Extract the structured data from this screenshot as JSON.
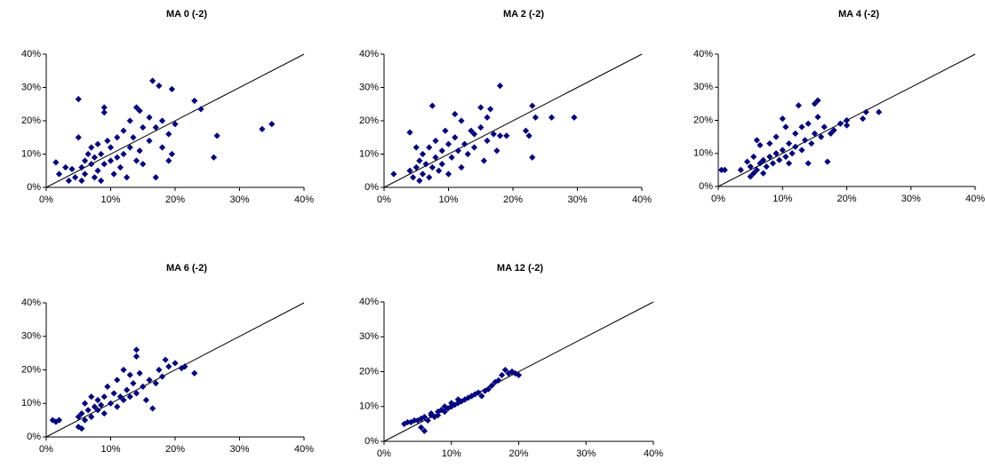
{
  "chart_data": [
    {
      "type": "scatter",
      "title": "MA 0 (-2)",
      "color": "#000080",
      "diagonal": true,
      "xlim": [
        0,
        40
      ],
      "ylim": [
        0,
        40
      ],
      "xticks": [
        {
          "value": 0,
          "label": "0%"
        },
        {
          "value": 10,
          "label": "10%"
        },
        {
          "value": 20,
          "label": "20%"
        },
        {
          "value": 30,
          "label": "30%"
        },
        {
          "value": 40,
          "label": "40%"
        }
      ],
      "yticks": [
        {
          "value": 0,
          "label": "0%"
        },
        {
          "value": 10,
          "label": "10%"
        },
        {
          "value": 20,
          "label": "20%"
        },
        {
          "value": 30,
          "label": "30%"
        },
        {
          "value": 40,
          "label": "40%"
        }
      ],
      "x": [
        1.5,
        2,
        3,
        3.5,
        4,
        4.5,
        5,
        5,
        5.5,
        5.5,
        6,
        6,
        6.5,
        7,
        7,
        7.5,
        7.5,
        8,
        8,
        8.5,
        8.5,
        9,
        9,
        9,
        9.5,
        10,
        10,
        10.5,
        11,
        11,
        11.5,
        12,
        12,
        12.5,
        13,
        13,
        13.5,
        14,
        14,
        14.5,
        14.5,
        15,
        15,
        16,
        16,
        16.5,
        17,
        17,
        17.5,
        18,
        18,
        19,
        19,
        19.5,
        19.5,
        20,
        23,
        24,
        26,
        26.5,
        33.5,
        35
      ],
      "y": [
        7.5,
        4,
        6,
        2,
        5.5,
        3,
        26.5,
        15,
        2,
        6,
        8,
        4,
        10,
        7,
        12,
        3,
        9,
        5,
        13,
        2,
        10,
        22.5,
        24,
        7,
        14,
        8,
        12,
        4,
        9,
        15,
        6,
        10,
        17,
        3,
        12,
        20,
        15,
        24,
        8,
        23,
        11,
        18,
        7,
        14,
        21,
        32,
        3,
        18,
        30.5,
        12,
        20,
        8,
        16,
        29.5,
        10,
        19,
        26,
        23.5,
        9,
        15.5,
        17.5,
        19
      ]
    },
    {
      "type": "scatter",
      "title": "MA 2 (-2)",
      "color": "#000080",
      "diagonal": true,
      "xlim": [
        0,
        40
      ],
      "ylim": [
        0,
        40
      ],
      "xticks": [
        {
          "value": 0,
          "label": "0%"
        },
        {
          "value": 10,
          "label": "10%"
        },
        {
          "value": 20,
          "label": "20%"
        },
        {
          "value": 30,
          "label": "30%"
        },
        {
          "value": 40,
          "label": "40%"
        }
      ],
      "yticks": [
        {
          "value": 0,
          "label": "0%"
        },
        {
          "value": 10,
          "label": "10%"
        },
        {
          "value": 20,
          "label": "20%"
        },
        {
          "value": 30,
          "label": "30%"
        },
        {
          "value": 40,
          "label": "40%"
        }
      ],
      "x": [
        1.5,
        4,
        4,
        4.5,
        5,
        5,
        5.5,
        5.5,
        6,
        6,
        6.5,
        7,
        7,
        7.5,
        7.5,
        8,
        8,
        8.5,
        9,
        9,
        9.5,
        10,
        10,
        10.5,
        11,
        11,
        11.5,
        12,
        12,
        12.5,
        13,
        13.5,
        14,
        14,
        15,
        15,
        15.5,
        16,
        16,
        16.5,
        17,
        17.5,
        18,
        18,
        19,
        22,
        22.5,
        23,
        23,
        23.5,
        26,
        29.5
      ],
      "y": [
        4,
        16.5,
        5,
        3,
        6,
        12,
        2,
        8,
        4,
        10,
        7,
        3,
        12,
        24.5,
        6,
        9,
        14,
        5,
        11,
        7,
        17,
        13,
        4,
        9,
        22,
        15,
        11,
        6,
        20,
        13,
        10,
        17,
        12,
        16,
        24,
        18,
        8,
        21,
        14,
        23.5,
        16,
        11,
        30.5,
        15.5,
        15.5,
        17,
        15.5,
        9,
        24.5,
        21,
        21,
        21
      ]
    },
    {
      "type": "scatter",
      "title": "MA 4 (-2)",
      "color": "#000080",
      "diagonal": true,
      "xlim": [
        0,
        40
      ],
      "ylim": [
        0,
        40
      ],
      "xticks": [
        {
          "value": 0,
          "label": "0%"
        },
        {
          "value": 10,
          "label": "10%"
        },
        {
          "value": 20,
          "label": "20%"
        },
        {
          "value": 30,
          "label": "30%"
        },
        {
          "value": 40,
          "label": "40%"
        }
      ],
      "yticks": [
        {
          "value": 0,
          "label": "0%"
        },
        {
          "value": 10,
          "label": "10%"
        },
        {
          "value": 20,
          "label": "20%"
        },
        {
          "value": 30,
          "label": "30%"
        },
        {
          "value": 40,
          "label": "40%"
        }
      ],
      "x": [
        0.5,
        1,
        3.5,
        4.5,
        5,
        5,
        5.5,
        5.5,
        6,
        6,
        6.5,
        6.5,
        7,
        7,
        7.5,
        8,
        8,
        8.5,
        9,
        9,
        9.5,
        10,
        10,
        10.5,
        10.5,
        11,
        11,
        11.5,
        12,
        12,
        12.5,
        13,
        13,
        13.5,
        14,
        14,
        14.5,
        15,
        15,
        15.5,
        15.5,
        16,
        16.5,
        17,
        17.5,
        18,
        19,
        20,
        20,
        22.5,
        23,
        25
      ],
      "y": [
        5,
        5,
        5,
        7.5,
        3,
        6,
        4,
        9,
        5,
        14,
        7,
        12.5,
        4,
        8,
        6,
        9,
        13,
        7,
        10,
        15,
        8,
        11,
        20.5,
        9,
        18,
        7,
        13,
        10,
        12,
        16,
        24.5,
        11,
        18,
        14,
        7,
        19,
        13,
        16,
        25,
        26,
        21,
        15,
        18,
        7.5,
        16,
        17,
        19,
        18.5,
        20,
        20.5,
        22.5,
        22.5
      ]
    },
    {
      "type": "scatter",
      "title": "MA 6 (-2)",
      "color": "#000080",
      "diagonal": true,
      "xlim": [
        0,
        40
      ],
      "ylim": [
        0,
        40
      ],
      "xticks": [
        {
          "value": 0,
          "label": "0%"
        },
        {
          "value": 10,
          "label": "10%"
        },
        {
          "value": 20,
          "label": "20%"
        },
        {
          "value": 30,
          "label": "30%"
        },
        {
          "value": 40,
          "label": "40%"
        }
      ],
      "yticks": [
        {
          "value": 0,
          "label": "0%"
        },
        {
          "value": 10,
          "label": "10%"
        },
        {
          "value": 20,
          "label": "20%"
        },
        {
          "value": 30,
          "label": "30%"
        },
        {
          "value": 40,
          "label": "40%"
        }
      ],
      "x": [
        1,
        1.5,
        2,
        5,
        5,
        5.5,
        5.5,
        6,
        6,
        6.5,
        7,
        7,
        7.5,
        8,
        8,
        8.5,
        9,
        9,
        9.5,
        10,
        10.5,
        11,
        11,
        11.5,
        12,
        12,
        12.5,
        13,
        13,
        13.5,
        14,
        14,
        14,
        14.5,
        15,
        15.5,
        16,
        16.5,
        17,
        17.5,
        18,
        18.5,
        19,
        20,
        21,
        21.5,
        23
      ],
      "y": [
        5,
        4.5,
        5,
        3,
        6,
        2.5,
        7,
        5,
        10,
        8,
        6,
        12,
        9,
        8,
        11,
        9.5,
        7,
        12,
        15,
        10,
        13,
        9,
        17,
        12,
        11,
        20,
        14,
        12,
        18.5,
        16,
        26,
        24,
        13,
        19,
        15,
        11,
        17,
        8.5,
        16,
        20,
        18,
        23,
        21,
        22,
        20.5,
        21,
        19
      ]
    },
    {
      "type": "scatter",
      "title": "MA 12 (-2)",
      "color": "#000080",
      "diagonal": true,
      "xlim": [
        0,
        40
      ],
      "ylim": [
        0,
        40
      ],
      "xticks": [
        {
          "value": 0,
          "label": "0%"
        },
        {
          "value": 10,
          "label": "10%"
        },
        {
          "value": 20,
          "label": "20%"
        },
        {
          "value": 30,
          "label": "30%"
        },
        {
          "value": 40,
          "label": "40%"
        }
      ],
      "yticks": [
        {
          "value": 0,
          "label": "0%"
        },
        {
          "value": 10,
          "label": "10%"
        },
        {
          "value": 20,
          "label": "20%"
        },
        {
          "value": 30,
          "label": "30%"
        },
        {
          "value": 40,
          "label": "40%"
        }
      ],
      "x": [
        3,
        3.5,
        4,
        4.5,
        5,
        5.5,
        5.5,
        6,
        6,
        6.5,
        7,
        7,
        7.5,
        8,
        8,
        8.5,
        9,
        9,
        9.5,
        10,
        10,
        10.5,
        11,
        11,
        11.5,
        12,
        12.5,
        13,
        13.5,
        14,
        14.5,
        15,
        15.5,
        16,
        16.5,
        17,
        17.5,
        18,
        18.5,
        19,
        19.5,
        20
      ],
      "y": [
        5,
        5.5,
        5.5,
        6,
        6,
        4,
        6.5,
        3,
        7,
        6,
        7.5,
        8,
        7,
        8.5,
        7.5,
        9,
        8.5,
        10,
        9.5,
        10,
        11,
        10.5,
        11,
        12,
        11.5,
        12,
        12.5,
        13,
        13.5,
        14,
        13,
        14.5,
        15,
        16,
        17,
        17.5,
        19,
        20.5,
        19.5,
        20,
        19.5,
        19
      ]
    }
  ]
}
